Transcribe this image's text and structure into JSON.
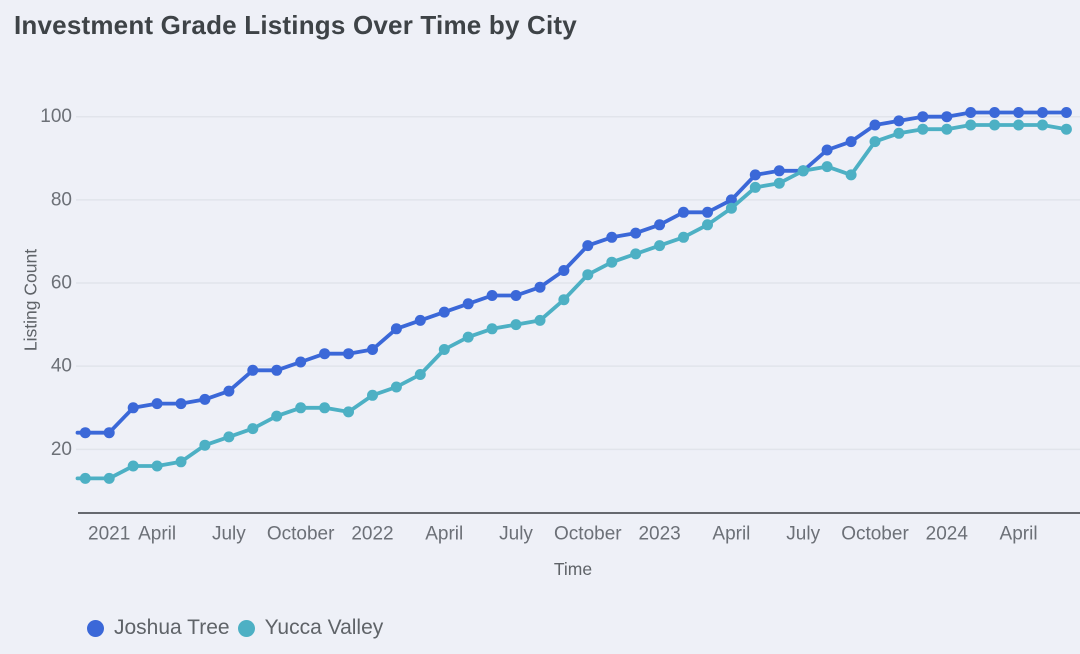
{
  "colors": {
    "background": "#eef0f7",
    "gridline": "#e1e4eb",
    "axis_line": "#66696f",
    "tick_text": "#6c7077",
    "title_text": "#3e4347",
    "axis_title_text": "#5f6368"
  },
  "chart_data": {
    "type": "line",
    "title": "Investment Grade Listings Over Time by City",
    "xlabel": "Time",
    "ylabel": "Listing Count",
    "grid": "horizontal",
    "legend_position": "bottom-left",
    "y_ticks": [
      20,
      40,
      60,
      80,
      100
    ],
    "ylim": [
      5,
      106
    ],
    "x_tick_labels": [
      "2021",
      "April",
      "July",
      "October",
      "2022",
      "April",
      "July",
      "October",
      "2023",
      "April",
      "July",
      "October",
      "2024",
      "April"
    ],
    "x_tick_month_index": [
      0,
      3,
      6,
      9,
      12,
      15,
      18,
      21,
      24,
      27,
      30,
      33,
      36,
      39
    ],
    "x": [
      "Jan 2021",
      "Feb 2021",
      "Mar 2021",
      "Apr 2021",
      "May 2021",
      "Jun 2021",
      "Jul 2021",
      "Aug 2021",
      "Sep 2021",
      "Oct 2021",
      "Nov 2021",
      "Dec 2021",
      "Jan 2022",
      "Feb 2022",
      "Mar 2022",
      "Apr 2022",
      "May 2022",
      "Jun 2022",
      "Jul 2022",
      "Aug 2022",
      "Sep 2022",
      "Oct 2022",
      "Nov 2022",
      "Dec 2022",
      "Jan 2023",
      "Feb 2023",
      "Mar 2023",
      "Apr 2023",
      "May 2023",
      "Jun 2023",
      "Jul 2023",
      "Aug 2023",
      "Sep 2023",
      "Oct 2023",
      "Nov 2023",
      "Dec 2023",
      "Jan 2024",
      "Feb 2024",
      "Mar 2024",
      "Apr 2024",
      "May 2024",
      "Jun 2024"
    ],
    "series": [
      {
        "name": "Joshua Tree",
        "color": "#3b68d8",
        "values": [
          24,
          24,
          30,
          31,
          31,
          32,
          34,
          39,
          39,
          41,
          43,
          43,
          44,
          49,
          51,
          53,
          55,
          57,
          57,
          59,
          63,
          69,
          71,
          72,
          74,
          77,
          77,
          80,
          86,
          87,
          87,
          92,
          94,
          98,
          99,
          100,
          100,
          101,
          101,
          101,
          101,
          101
        ]
      },
      {
        "name": "Yucca Valley",
        "color": "#4db0c4",
        "values": [
          13,
          13,
          16,
          16,
          17,
          21,
          23,
          25,
          28,
          30,
          30,
          29,
          33,
          35,
          38,
          44,
          47,
          49,
          50,
          51,
          56,
          62,
          65,
          67,
          69,
          71,
          74,
          78,
          83,
          84,
          87,
          88,
          86,
          94,
          96,
          97,
          97,
          98,
          98,
          98,
          98,
          97
        ]
      }
    ]
  }
}
